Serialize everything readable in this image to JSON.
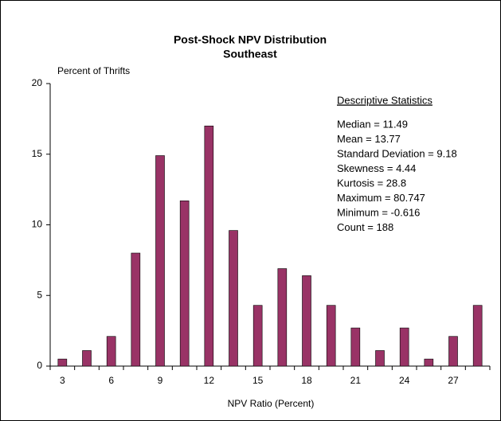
{
  "chart_data": {
    "type": "bar",
    "title": "Post-Shock NPV Distribution",
    "subtitle": "Southeast",
    "y_label": "Percent of Thrifts",
    "x_label": "NPV Ratio (Percent)",
    "categories": [
      "3",
      null,
      "6",
      null,
      "9",
      null,
      "12",
      null,
      "15",
      null,
      "18",
      null,
      "21",
      null,
      "24",
      null,
      "27",
      null
    ],
    "values": [
      0.5,
      1.1,
      2.1,
      8.0,
      14.9,
      11.7,
      17.0,
      9.6,
      4.3,
      6.9,
      6.4,
      4.3,
      2.7,
      1.1,
      2.7,
      0.5,
      2.1,
      4.3
    ],
    "color": "#993366",
    "ylim": [
      0,
      20
    ],
    "yticks": [
      0,
      5,
      10,
      15,
      20
    ],
    "stats_title": "Descriptive Statistics",
    "stats": [
      "Median = 11.49",
      "Mean = 13.77",
      "Standard Deviation = 9.18",
      "Skewness = 4.44",
      "Kurtosis = 28.8",
      "Maximum = 80.747",
      "Minimum = -0.616",
      "Count = 188"
    ]
  }
}
